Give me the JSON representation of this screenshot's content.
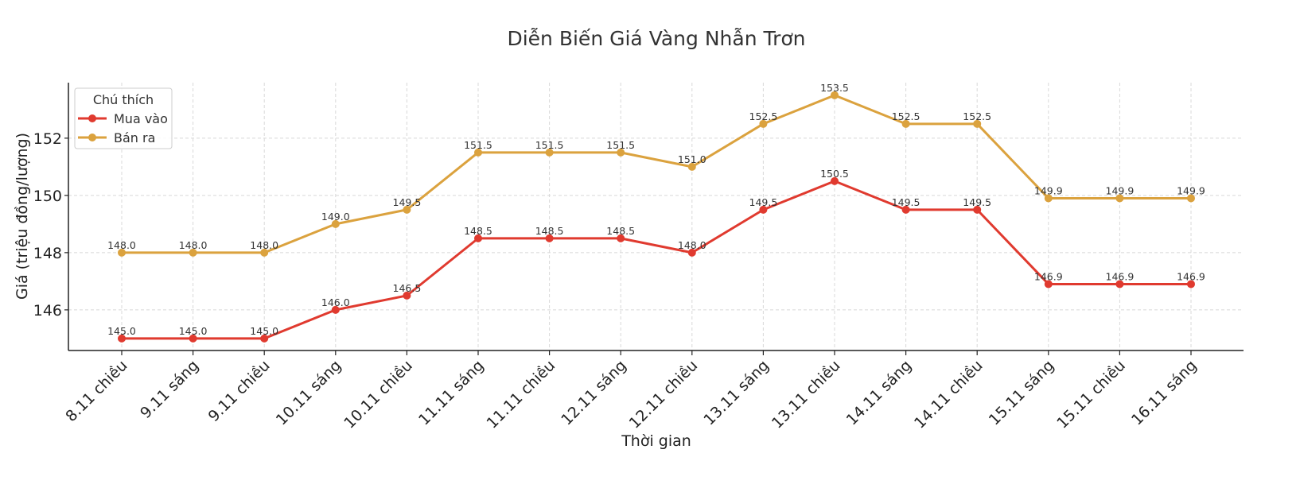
{
  "chart_data": {
    "type": "line",
    "title": "Diễn Biến Giá Vàng Nhẫn Trơn",
    "xlabel": "Thời gian",
    "ylabel": "Giá (triệu đồng/lượng)",
    "categories": [
      "8.11 chiều",
      "9.11 sáng",
      "9.11 chiều",
      "10.11 sáng",
      "10.11 chiều",
      "11.11 sáng",
      "11.11 chiều",
      "12.11 sáng",
      "12.11 chiều",
      "13.11 sáng",
      "13.11 chiều",
      "14.11 sáng",
      "14.11 chiều",
      "15.11 sáng",
      "15.11 chiều",
      "16.11 sáng"
    ],
    "series": [
      {
        "name": "Mua vào",
        "color": "#e03a2f",
        "values": [
          145.0,
          145.0,
          145.0,
          146.0,
          146.5,
          148.5,
          148.5,
          148.5,
          148.0,
          149.5,
          150.5,
          149.5,
          149.5,
          146.9,
          146.9,
          146.9
        ]
      },
      {
        "name": "Bán ra",
        "color": "#dba23e",
        "values": [
          148.0,
          148.0,
          148.0,
          149.0,
          149.5,
          151.5,
          151.5,
          151.5,
          151.0,
          152.5,
          153.5,
          152.5,
          152.5,
          149.9,
          149.9,
          149.9
        ]
      }
    ],
    "yticks": [
      146,
      148,
      150,
      152
    ],
    "ylim": [
      144.58,
      153.94
    ],
    "grid": true,
    "legend": {
      "title": "Chú thích",
      "position": "upper left"
    }
  }
}
